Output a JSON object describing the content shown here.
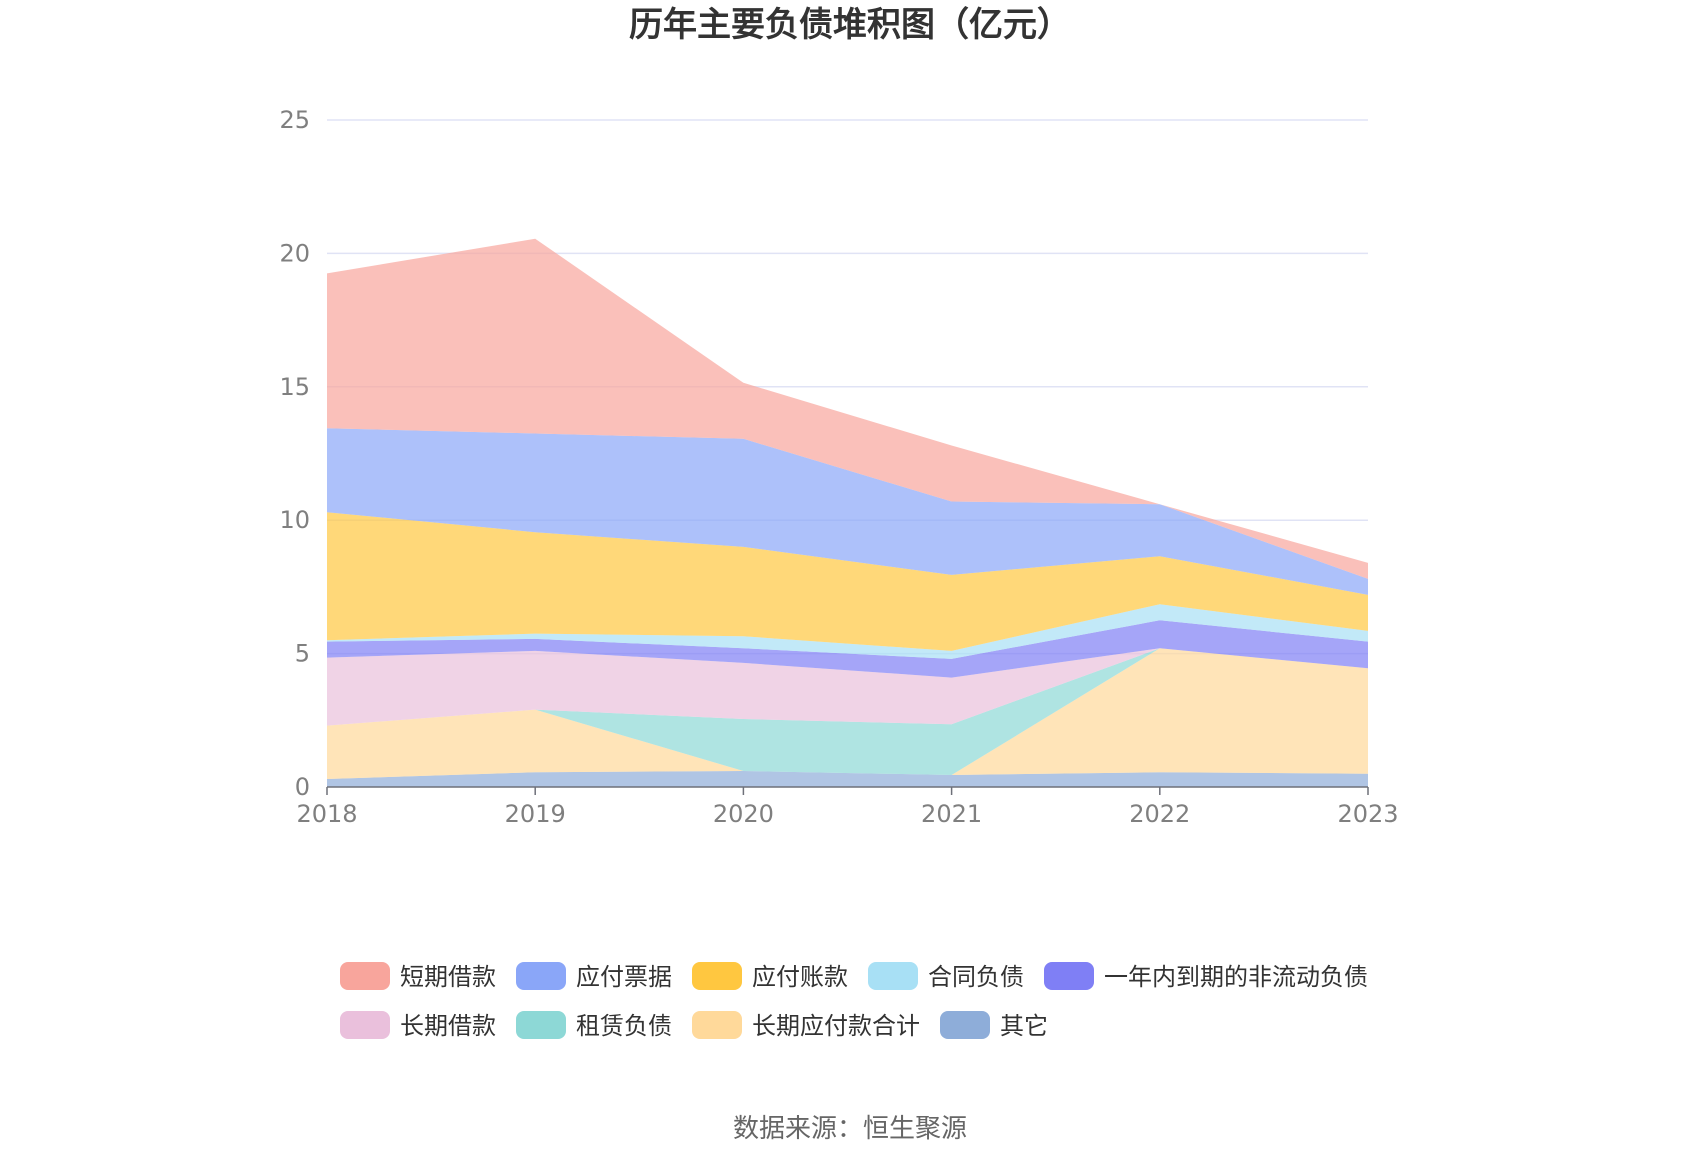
{
  "chart_data": {
    "type": "area",
    "stacked": true,
    "title": "历年主要负债堆积图（亿元）",
    "source": "数据来源：恒生聚源",
    "categories": [
      "2018",
      "2019",
      "2020",
      "2021",
      "2022",
      "2023"
    ],
    "ylim": [
      0,
      25
    ],
    "yticks": [
      "0",
      "5",
      "10",
      "15",
      "20",
      "25"
    ],
    "grid": true,
    "legend_position": "bottom",
    "series": [
      {
        "name": "其它",
        "color": "#8eadd9",
        "values": [
          0.3,
          0.55,
          0.6,
          0.45,
          0.55,
          0.5
        ]
      },
      {
        "name": "长期应付款合计",
        "color": "#ffd99a",
        "values": [
          2.0,
          2.35,
          0.0,
          0.0,
          4.65,
          3.95
        ]
      },
      {
        "name": "租赁负债",
        "color": "#8dd8d6",
        "values": [
          0.0,
          0.0,
          1.95,
          1.9,
          0.0,
          0.0
        ]
      },
      {
        "name": "长期借款",
        "color": "#eac0dc",
        "values": [
          2.55,
          2.2,
          2.1,
          1.75,
          0.0,
          0.0
        ]
      },
      {
        "name": "一年内到期的非流动负债",
        "color": "#7f7ff5",
        "values": [
          0.6,
          0.45,
          0.55,
          0.7,
          1.05,
          1.0
        ]
      },
      {
        "name": "合同负债",
        "color": "#a8e0f5",
        "values": [
          0.05,
          0.2,
          0.45,
          0.3,
          0.6,
          0.4
        ]
      },
      {
        "name": "应付账款",
        "color": "#ffc740",
        "values": [
          4.8,
          3.8,
          3.35,
          2.85,
          1.8,
          1.35
        ]
      },
      {
        "name": "应付票据",
        "color": "#8aa6f8",
        "values": [
          3.15,
          3.7,
          4.05,
          2.75,
          1.95,
          0.6
        ]
      },
      {
        "name": "短期借款",
        "color": "#f8a59c",
        "values": [
          5.8,
          7.3,
          2.1,
          2.1,
          0.0,
          0.6
        ]
      }
    ],
    "legend_order": [
      "短期借款",
      "应付票据",
      "应付账款",
      "合同负债",
      "一年内到期的非流动负债",
      "长期借款",
      "租赁负债",
      "长期应付款合计",
      "其它"
    ]
  }
}
